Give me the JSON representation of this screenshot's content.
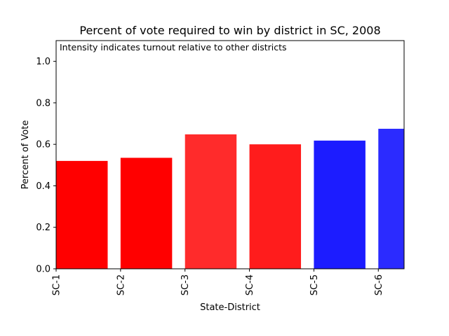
{
  "chart_data": {
    "type": "bar",
    "title": "Percent of vote required to win by district in SC, 2008",
    "annotation": "Intensity indicates turnout relative to other districts",
    "xlabel": "State-District",
    "ylabel": "Percent of Vote",
    "ylim": [
      0,
      1.1
    ],
    "yticks": [
      "0.0",
      "0.2",
      "0.4",
      "0.6",
      "0.8",
      "1.0"
    ],
    "categories": [
      "SC-1",
      "SC-2",
      "SC-3",
      "SC-4",
      "SC-5",
      "SC-6"
    ],
    "values": [
      0.52,
      0.535,
      0.648,
      0.6,
      0.618,
      0.675
    ],
    "colors": [
      "#ff0000",
      "#ff0000",
      "#ff2b2b",
      "#ff1c1c",
      "#1c1cff",
      "#2b2bff"
    ],
    "grid": false,
    "legend": "none"
  }
}
